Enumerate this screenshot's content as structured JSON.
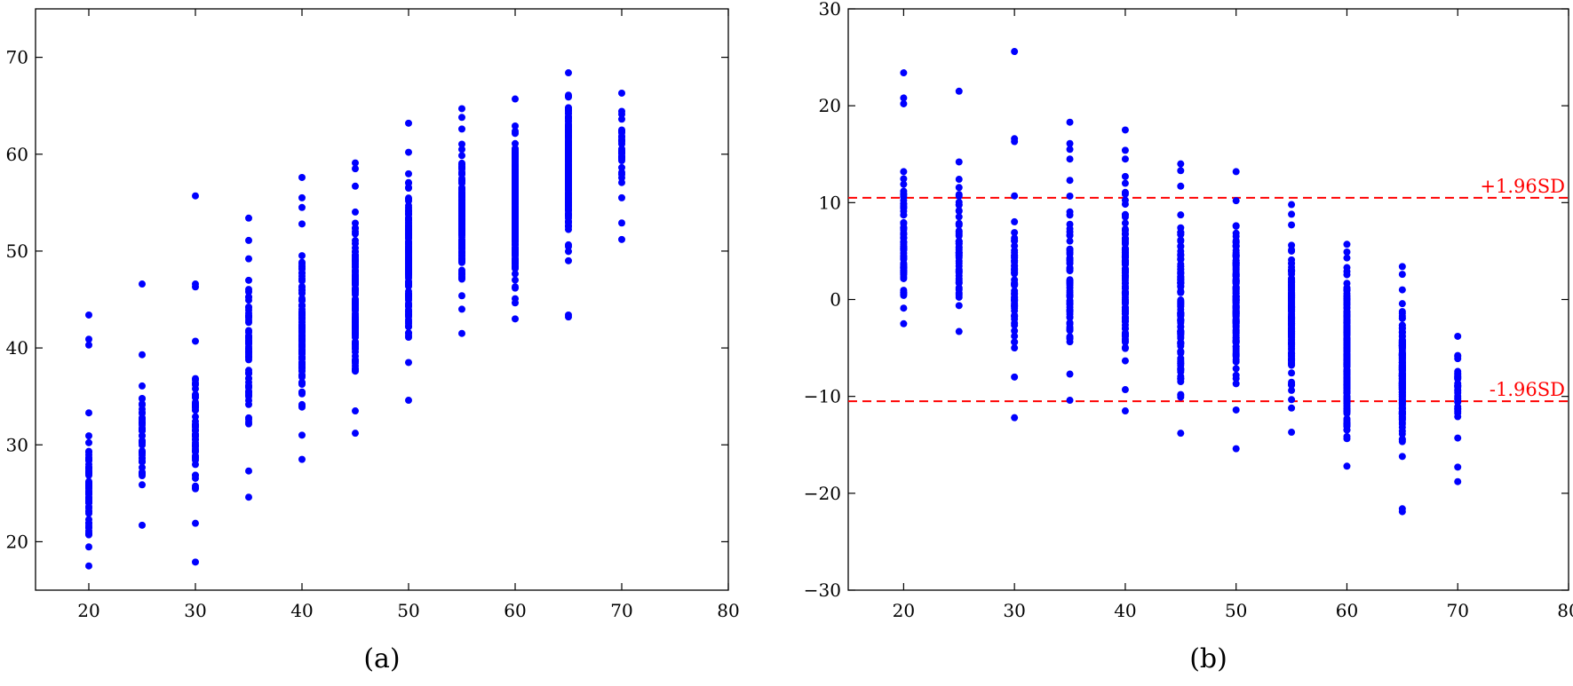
{
  "colors": {
    "points": "#0000ff",
    "reference_lines": "#ff0000",
    "axes": "#000000"
  },
  "chart_data": [
    {
      "type": "scatter",
      "caption": "(a)",
      "xlim": [
        15,
        80
      ],
      "ylim": [
        15,
        75
      ],
      "xticks": [
        20,
        30,
        40,
        50,
        60,
        70,
        80
      ],
      "yticks": [
        20,
        30,
        40,
        50,
        60,
        70
      ],
      "grid": false,
      "groups": [
        {
          "x": 20,
          "count": 70,
          "min": 17.5,
          "max": 33.3,
          "outliers": [
            40.3,
            40.9,
            43.4
          ]
        },
        {
          "x": 25,
          "count": 50,
          "min": 21.7,
          "max": 39.3,
          "outliers": [
            46.6
          ]
        },
        {
          "x": 30,
          "count": 55,
          "min": 21.9,
          "max": 40.7,
          "outliers": [
            17.9,
            46.3,
            46.6,
            55.7
          ]
        },
        {
          "x": 35,
          "count": 70,
          "min": 27.3,
          "max": 51.1,
          "outliers": [
            24.6,
            53.4
          ]
        },
        {
          "x": 40,
          "count": 110,
          "min": 31.0,
          "max": 52.8,
          "outliers": [
            28.5,
            54.5,
            55.5,
            57.6
          ]
        },
        {
          "x": 45,
          "count": 120,
          "min": 33.5,
          "max": 56.7,
          "outliers": [
            31.2,
            58.5,
            59.1
          ]
        },
        {
          "x": 50,
          "count": 150,
          "min": 38.5,
          "max": 60.2,
          "outliers": [
            34.6,
            63.2
          ]
        },
        {
          "x": 55,
          "count": 150,
          "min": 44.0,
          "max": 62.6,
          "outliers": [
            41.5,
            63.8,
            64.7
          ]
        },
        {
          "x": 60,
          "count": 220,
          "min": 43.0,
          "max": 65.7,
          "outliers": []
        },
        {
          "x": 65,
          "count": 220,
          "min": 49.0,
          "max": 68.4,
          "outliers": [
            43.2,
            43.4
          ]
        },
        {
          "x": 70,
          "count": 30,
          "min": 55.5,
          "max": 66.3,
          "outliers": [
            51.2,
            52.9
          ]
        }
      ]
    },
    {
      "type": "scatter",
      "caption": "(b)",
      "xlim": [
        15,
        80
      ],
      "ylim": [
        -30,
        30
      ],
      "xticks": [
        20,
        30,
        40,
        50,
        60,
        70,
        80
      ],
      "yticks": [
        -30,
        -20,
        -10,
        0,
        10,
        20,
        30
      ],
      "grid": false,
      "reference_lines": [
        {
          "label": "+1.96SD",
          "y": 10.5,
          "style": "dashed"
        },
        {
          "label": "-1.96SD",
          "y": -10.5,
          "style": "dashed"
        }
      ],
      "groups": [
        {
          "x": 20,
          "count": 70,
          "min": -2.5,
          "max": 13.2,
          "outliers": [
            20.2,
            20.8,
            23.4
          ]
        },
        {
          "x": 25,
          "count": 50,
          "min": -3.3,
          "max": 14.2,
          "outliers": [
            21.5
          ]
        },
        {
          "x": 30,
          "count": 55,
          "min": -8.0,
          "max": 10.7,
          "outliers": [
            -12.2,
            16.3,
            16.6,
            25.6
          ]
        },
        {
          "x": 35,
          "count": 70,
          "min": -7.7,
          "max": 12.3,
          "outliers": [
            -10.4,
            14.5,
            15.5,
            16.1,
            18.3
          ]
        },
        {
          "x": 40,
          "count": 110,
          "min": -9.3,
          "max": 12.7,
          "outliers": [
            -11.5,
            14.5,
            15.4,
            17.5
          ]
        },
        {
          "x": 45,
          "count": 120,
          "min": -13.8,
          "max": 11.7,
          "outliers": [
            13.3,
            14.0
          ]
        },
        {
          "x": 50,
          "count": 150,
          "min": -11.4,
          "max": 10.2,
          "outliers": [
            -15.4,
            13.2
          ]
        },
        {
          "x": 55,
          "count": 150,
          "min": -11.2,
          "max": 7.7,
          "outliers": [
            -13.7,
            8.8,
            9.8
          ]
        },
        {
          "x": 60,
          "count": 220,
          "min": -17.2,
          "max": 4.9,
          "outliers": [
            5.7
          ]
        },
        {
          "x": 65,
          "count": 220,
          "min": -16.2,
          "max": 1.0,
          "outliers": [
            -21.6,
            -21.9,
            2.6,
            3.4
          ]
        },
        {
          "x": 70,
          "count": 30,
          "min": -14.3,
          "max": -3.8,
          "outliers": [
            -17.3,
            -18.8
          ]
        }
      ]
    }
  ]
}
